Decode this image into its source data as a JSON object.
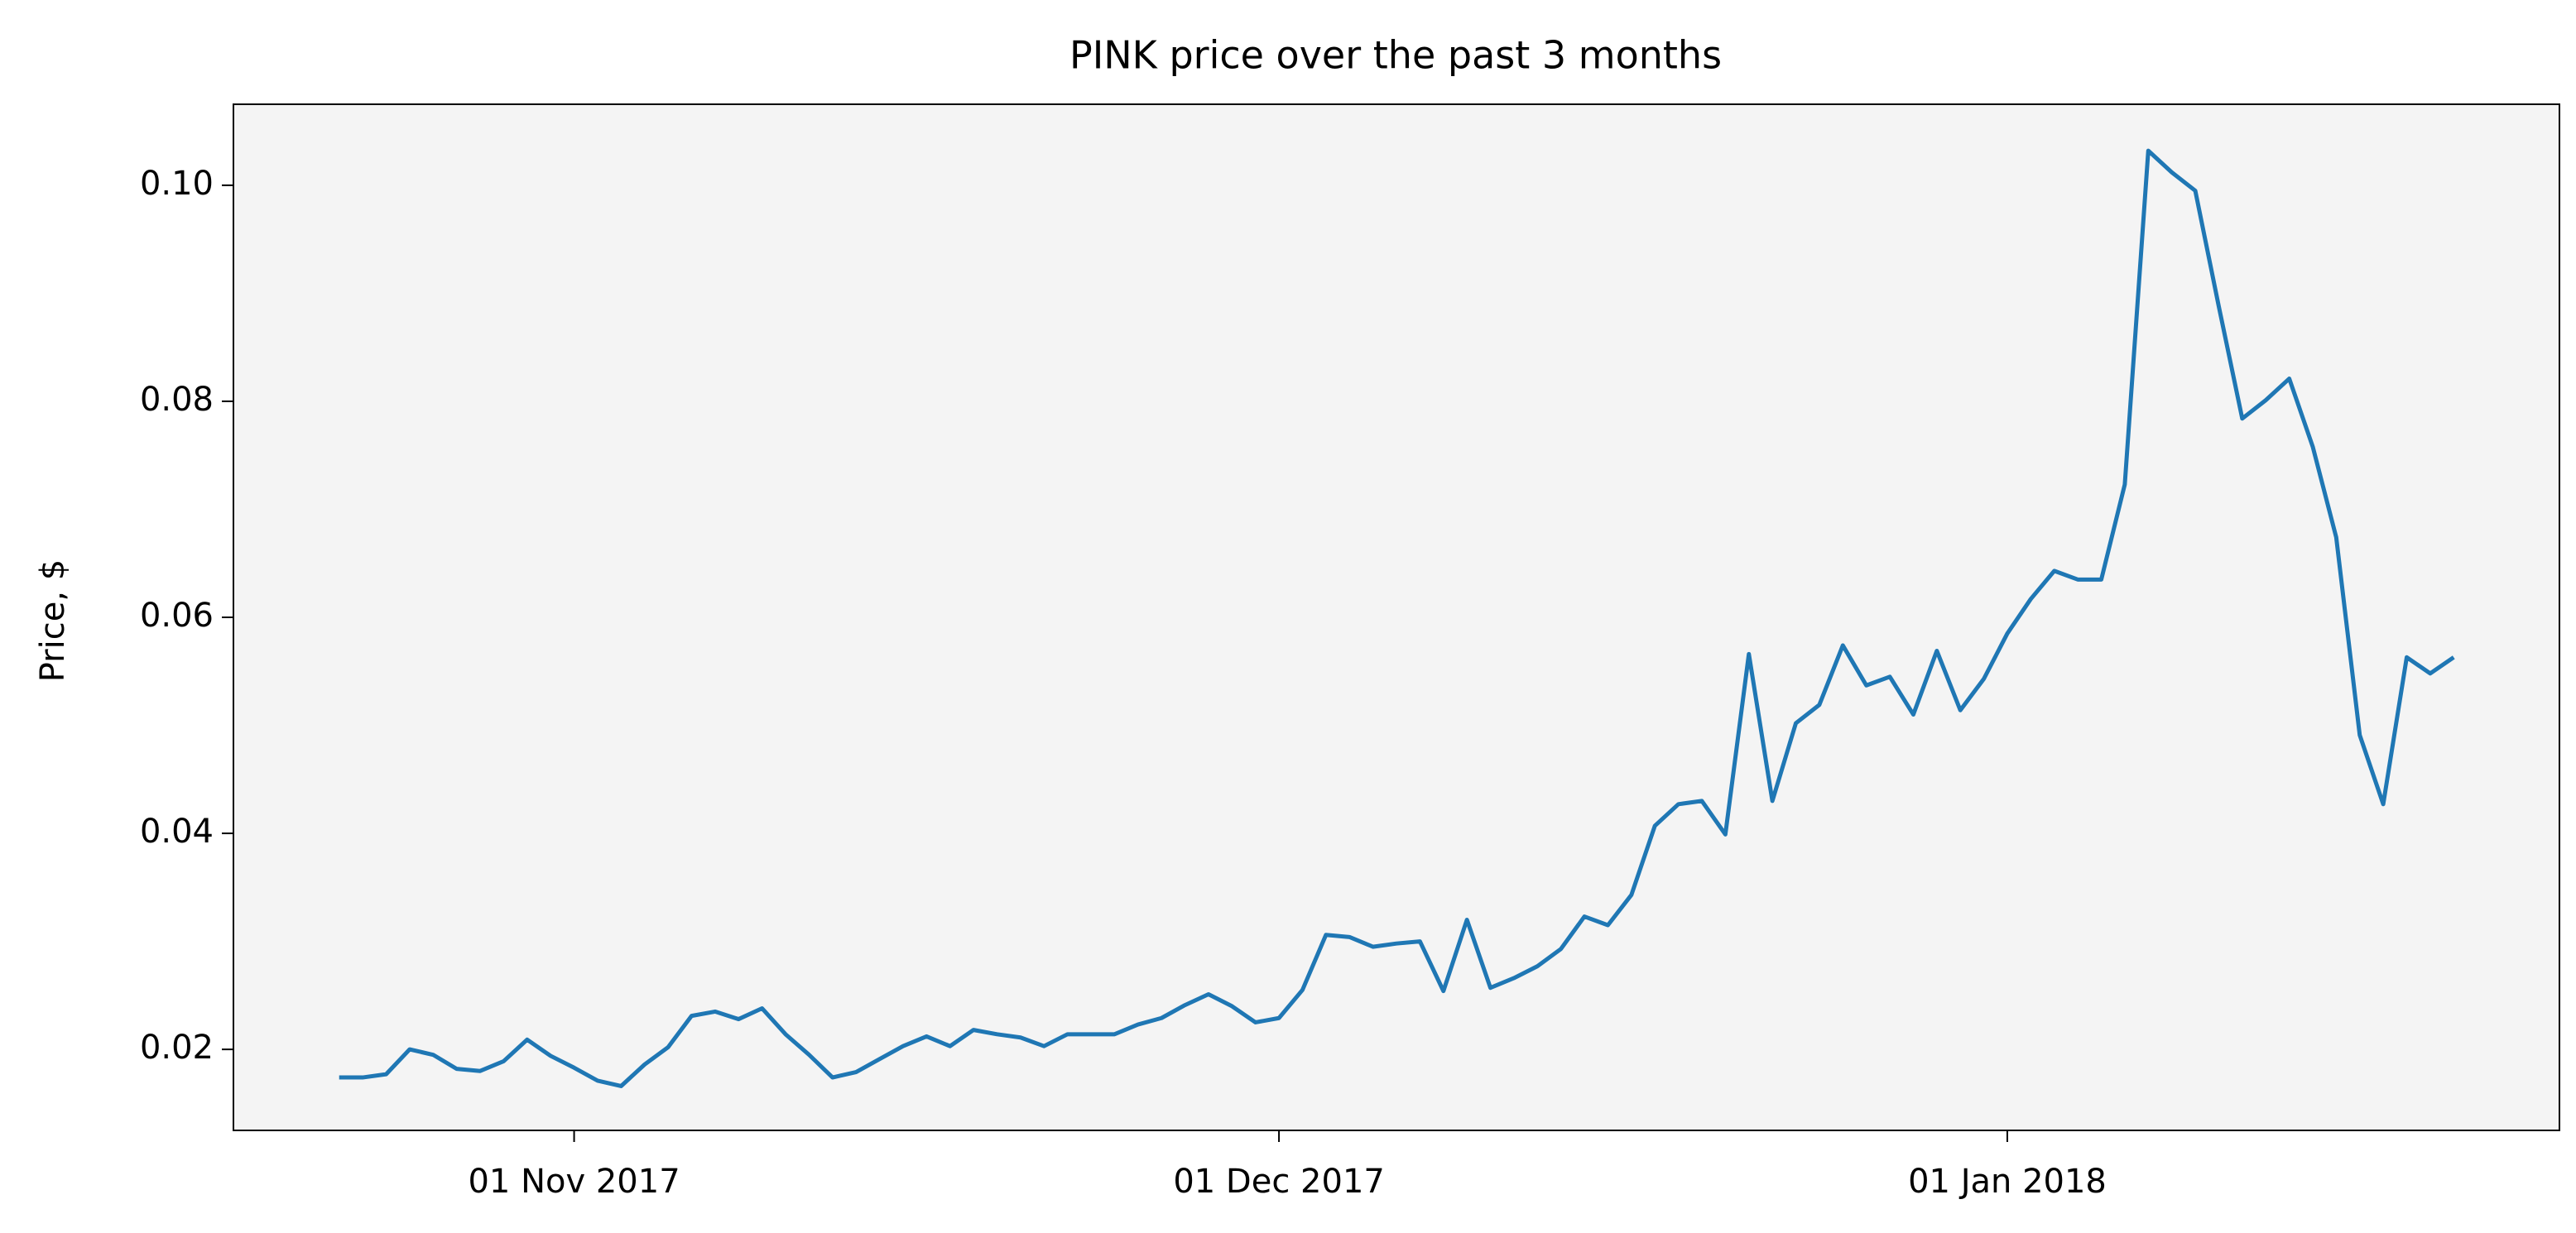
{
  "chart_data": {
    "type": "line",
    "title": "PINK price over the past 3 months",
    "y_label": "Price, $",
    "x": [
      "2017-10-22",
      "2017-10-23",
      "2017-10-24",
      "2017-10-25",
      "2017-10-26",
      "2017-10-27",
      "2017-10-28",
      "2017-10-29",
      "2017-10-30",
      "2017-10-31",
      "2017-11-01",
      "2017-11-02",
      "2017-11-03",
      "2017-11-04",
      "2017-11-05",
      "2017-11-06",
      "2017-11-07",
      "2017-11-08",
      "2017-11-09",
      "2017-11-10",
      "2017-11-11",
      "2017-11-12",
      "2017-11-13",
      "2017-11-14",
      "2017-11-15",
      "2017-11-16",
      "2017-11-17",
      "2017-11-18",
      "2017-11-19",
      "2017-11-20",
      "2017-11-21",
      "2017-11-22",
      "2017-11-23",
      "2017-11-24",
      "2017-11-25",
      "2017-11-26",
      "2017-11-27",
      "2017-11-28",
      "2017-11-29",
      "2017-11-30",
      "2017-12-01",
      "2017-12-02",
      "2017-12-03",
      "2017-12-04",
      "2017-12-05",
      "2017-12-06",
      "2017-12-07",
      "2017-12-08",
      "2017-12-09",
      "2017-12-10",
      "2017-12-11",
      "2017-12-12",
      "2017-12-13",
      "2017-12-14",
      "2017-12-15",
      "2017-12-16",
      "2017-12-17",
      "2017-12-18",
      "2017-12-19",
      "2017-12-20",
      "2017-12-21",
      "2017-12-22",
      "2017-12-23",
      "2017-12-24",
      "2017-12-25",
      "2017-12-26",
      "2017-12-27",
      "2017-12-28",
      "2017-12-29",
      "2017-12-30",
      "2017-12-31",
      "2018-01-01",
      "2018-01-02",
      "2018-01-03",
      "2018-01-04",
      "2018-01-05",
      "2018-01-06",
      "2018-01-07",
      "2018-01-08",
      "2018-01-09",
      "2018-01-10",
      "2018-01-11",
      "2018-01-12",
      "2018-01-13",
      "2018-01-14",
      "2018-01-15",
      "2018-01-16",
      "2018-01-17",
      "2018-01-18",
      "2018-01-19",
      "2018-01-20"
    ],
    "values": [
      0.0174,
      0.0174,
      0.0177,
      0.02,
      0.0195,
      0.0182,
      0.018,
      0.0189,
      0.0209,
      0.0194,
      0.0183,
      0.0171,
      0.0166,
      0.0186,
      0.0202,
      0.0231,
      0.0235,
      0.0228,
      0.0238,
      0.0214,
      0.0195,
      0.0174,
      0.0179,
      0.0191,
      0.0203,
      0.0212,
      0.0203,
      0.0218,
      0.0214,
      0.0211,
      0.0203,
      0.0214,
      0.0214,
      0.0214,
      0.0223,
      0.0229,
      0.0241,
      0.0251,
      0.024,
      0.0225,
      0.0229,
      0.0255,
      0.0306,
      0.0304,
      0.0295,
      0.0298,
      0.03,
      0.0254,
      0.032,
      0.0257,
      0.0266,
      0.0277,
      0.0293,
      0.0323,
      0.0315,
      0.0343,
      0.0407,
      0.0427,
      0.043,
      0.0399,
      0.0566,
      0.043,
      0.0502,
      0.0519,
      0.0574,
      0.0537,
      0.0545,
      0.051,
      0.0569,
      0.0514,
      0.0543,
      0.0585,
      0.0617,
      0.0643,
      0.0635,
      0.0635,
      0.0723,
      0.1032,
      0.1012,
      0.0995,
      0.0888,
      0.0784,
      0.0801,
      0.0821,
      0.0758,
      0.0674,
      0.0491,
      0.0427,
      0.0563,
      0.0548,
      0.0563
    ],
    "color": "#1f77b4",
    "xlim": [
      "2017-10-17T12:00:00Z",
      "2018-01-24T12:00:00Z"
    ],
    "xticks": [
      {
        "value": "2017-11-01",
        "label": "01 Nov 2017"
      },
      {
        "value": "2017-12-01",
        "label": "01 Dec 2017"
      },
      {
        "value": "2018-01-01",
        "label": "01 Jan 2018"
      }
    ],
    "ylim": [
      0.0125,
      0.1075
    ],
    "yticks": [
      0.02,
      0.04,
      0.06,
      0.08,
      {
        "value": 0.1,
        "label": "0.10"
      }
    ],
    "grid": false
  }
}
